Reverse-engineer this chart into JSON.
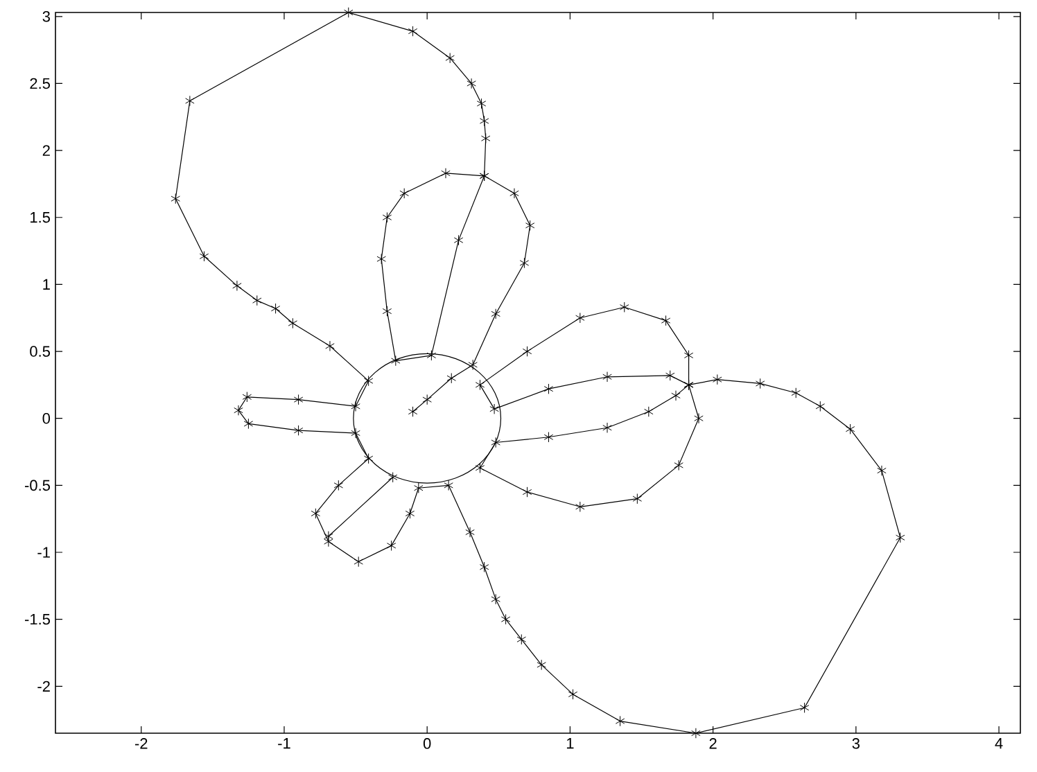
{
  "chart_data": {
    "type": "line",
    "marker": "cross",
    "line_style": "solid",
    "xlim": [
      -2.6,
      4.15
    ],
    "ylim": [
      -2.35,
      3.03
    ],
    "xticks": [
      -2,
      -1,
      0,
      1,
      2,
      3,
      4
    ],
    "yticks": [
      -2,
      -1.5,
      -1,
      -0.5,
      0,
      0.5,
      1,
      1.5,
      2,
      2.5,
      3
    ],
    "series": [
      {
        "color": "#000000",
        "x": [
          -0.1,
          0,
          0.17,
          0.32,
          0.48,
          0.68,
          0.72,
          0.61,
          0.4,
          0.22,
          0.03,
          -0.22,
          -0.28,
          -0.32,
          -0.28,
          -0.16,
          0.13,
          0.4,
          0.41,
          0.4,
          0.38,
          0.31,
          0.16,
          -0.1,
          -0.55,
          -1.66,
          -1.76,
          -1.56,
          -1.33,
          -1.19,
          -1.06,
          -0.94,
          -0.68,
          -0.41,
          -0.5,
          -0.9,
          -1.26,
          -1.32,
          -1.25,
          -0.9,
          -0.5,
          -0.41,
          -0.62,
          -0.78,
          -0.69,
          -0.48,
          -0.25,
          -0.12,
          -0.06,
          0.15,
          0.3,
          0.4,
          0.48,
          0.55,
          0.66,
          0.8,
          1.02,
          1.35,
          1.88,
          2.64,
          3.31,
          3.18,
          2.96,
          2.75,
          2.58,
          2.33,
          2.03,
          1.83,
          1.83,
          1.67,
          1.38,
          1.07,
          0.7,
          0.37,
          0.47,
          0.85,
          1.26,
          1.7,
          1.83,
          1.74,
          1.55,
          1.26,
          0.85,
          0.48,
          0.37,
          0.7,
          1.07,
          1.47,
          1.76,
          1.9,
          1.83,
          null,
          -0.24,
          -0.69
        ],
        "values": [
          0.05,
          0.14,
          0.3,
          0.4,
          0.78,
          1.16,
          1.44,
          1.68,
          1.81,
          1.33,
          0.47,
          0.43,
          0.8,
          1.19,
          1.5,
          1.68,
          1.83,
          1.81,
          2.09,
          2.22,
          2.35,
          2.5,
          2.69,
          2.89,
          3.03,
          2.37,
          1.64,
          1.21,
          0.99,
          0.88,
          0.82,
          0.71,
          0.54,
          0.28,
          0.09,
          0.14,
          0.16,
          0.06,
          -0.04,
          -0.09,
          -0.11,
          -0.3,
          -0.5,
          -0.71,
          -0.92,
          -1.07,
          -0.95,
          -0.71,
          -0.52,
          -0.5,
          -0.85,
          -1.11,
          -1.35,
          -1.5,
          -1.65,
          -1.84,
          -2.06,
          -2.26,
          -2.35,
          -2.16,
          -0.89,
          -0.39,
          -0.08,
          0.09,
          0.19,
          0.26,
          0.29,
          0.25,
          0.47,
          0.73,
          0.83,
          0.75,
          0.5,
          0.25,
          0.07,
          0.22,
          0.31,
          0.32,
          0.25,
          0.17,
          0.05,
          -0.07,
          -0.14,
          -0.18,
          -0.37,
          -0.55,
          -0.66,
          -0.6,
          -0.35,
          0.0,
          0.25,
          null,
          -0.44,
          -0.88
        ]
      }
    ]
  }
}
